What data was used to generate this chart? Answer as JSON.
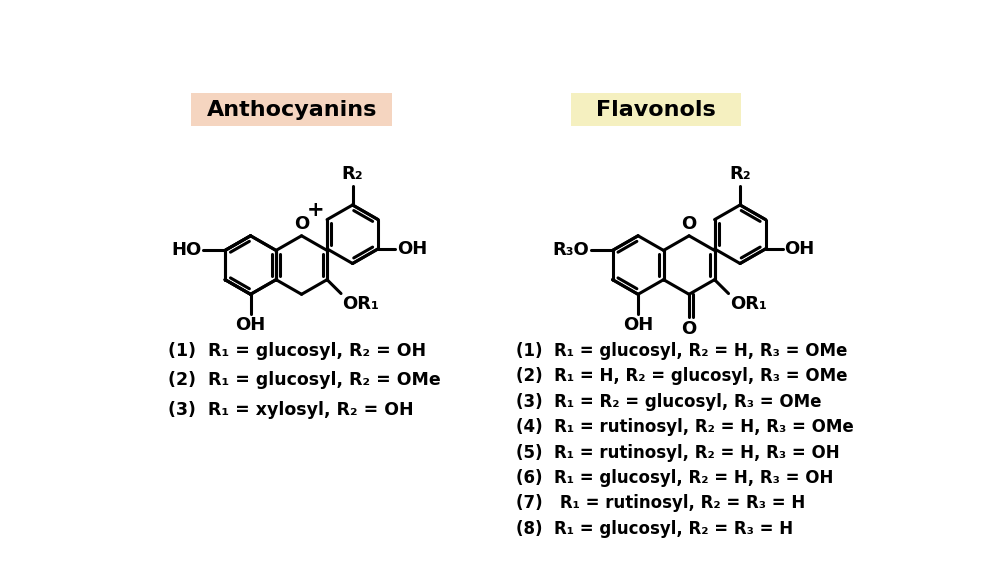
{
  "title_anthocyanins": "Anthocyanins",
  "title_flavonols": "Flavonols",
  "title_bg_anthocyanins": "#f5d5c0",
  "title_bg_flavonols": "#f5f0c0",
  "background_color": "#ffffff",
  "line_color": "#000000",
  "line_width": 2.2,
  "font_size_title": 16,
  "font_size_atom": 13,
  "font_size_compound": 12.5,
  "anthocyanin_compounds": [
    "(1)  R₁ = glucosyl, R₂ = OH",
    "(2)  R₁ = glucosyl, R₂ = OMe",
    "(3)  R₁ = xylosyl, R₂ = OH"
  ],
  "flavonol_compounds": [
    "(1)  R₁ = glucosyl, R₂ = H, R₃ = OMe",
    "(2)  R₁ = H, R₂ = glucosyl, R₃ = OMe",
    "(3)  R₁ = R₂ = glucosyl, R₃ = OMe",
    "(4)  R₁ = rutinosyl, R₂ = H, R₃ = OMe",
    "(5)  R₁ = rutinosyl, R₂ = H, R₃ = OH",
    "(6)  R₁ = glucosyl, R₂ = H, R₃ = OH",
    "(7)   R₁ = rutinosyl, R₂ = R₃ = H",
    "(8)  R₁ = glucosyl, R₂ = R₃ = H"
  ]
}
